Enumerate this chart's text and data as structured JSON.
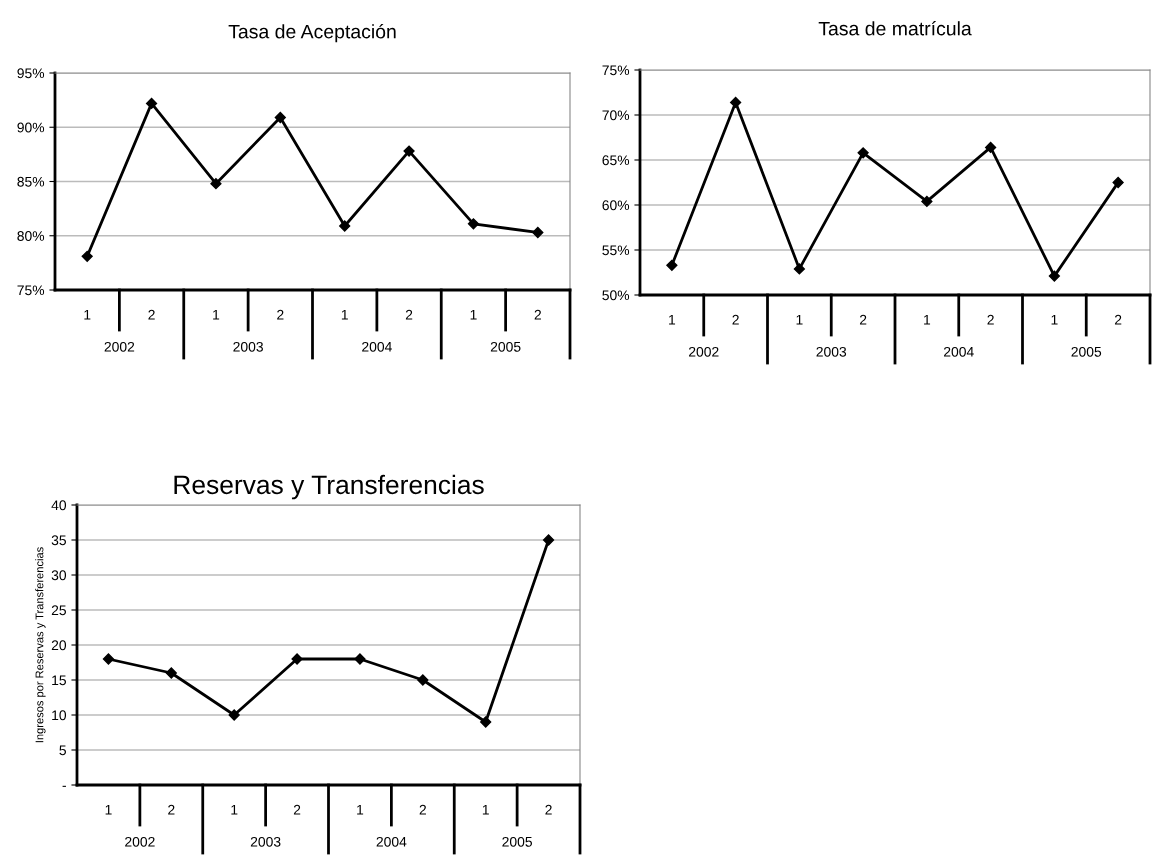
{
  "chart_data": [
    {
      "type": "line",
      "title": "Tasa de Aceptación",
      "categories": [
        "1",
        "2",
        "1",
        "2",
        "1",
        "2",
        "1",
        "2"
      ],
      "series": [
        {
          "color": "#000000",
          "values": [
            78.1,
            92.2,
            84.8,
            90.9,
            80.9,
            87.8,
            81.1,
            80.3
          ]
        }
      ],
      "annotations": [
        "2002",
        "2003",
        "2004",
        "2005"
      ],
      "ylim": [
        75,
        95
      ],
      "yticks": [
        {
          "value": 75,
          "label": "75%"
        },
        {
          "value": 80,
          "label": "80%"
        },
        {
          "value": 85,
          "label": "85%"
        },
        {
          "value": 90,
          "label": "90%"
        },
        {
          "value": 95,
          "label": "95%"
        }
      ],
      "grid": "y",
      "marker": "diamond",
      "line_style": "solid",
      "legend": false
    },
    {
      "type": "line",
      "title": "Tasa de matrícula",
      "categories": [
        "1",
        "2",
        "1",
        "2",
        "1",
        "2",
        "1",
        "2"
      ],
      "series": [
        {
          "color": "#000000",
          "values": [
            53.3,
            71.4,
            52.9,
            65.8,
            60.4,
            66.4,
            52.1,
            62.5
          ]
        }
      ],
      "annotations": [
        "2002",
        "2003",
        "2004",
        "2005"
      ],
      "ylim": [
        50,
        75
      ],
      "yticks": [
        {
          "value": 50,
          "label": "50%"
        },
        {
          "value": 55,
          "label": "55%"
        },
        {
          "value": 60,
          "label": "60%"
        },
        {
          "value": 65,
          "label": "65%"
        },
        {
          "value": 70,
          "label": "70%"
        },
        {
          "value": 75,
          "label": "75%"
        }
      ],
      "grid": "y",
      "marker": "diamond",
      "line_style": "solid",
      "legend": false
    },
    {
      "type": "line",
      "title": "Reservas y Transferencias",
      "ylabel": "Ingresos por Reservas y Transferencias",
      "categories": [
        "1",
        "2",
        "1",
        "2",
        "1",
        "2",
        "1",
        "2"
      ],
      "series": [
        {
          "color": "#000000",
          "values": [
            18,
            16,
            10,
            18,
            18,
            15,
            9,
            35
          ]
        }
      ],
      "annotations": [
        "2002",
        "2003",
        "2004",
        "2005"
      ],
      "ylim": [
        0,
        40
      ],
      "yticks": [
        {
          "value": 0,
          "label": "-"
        },
        5,
        10,
        15,
        20,
        25,
        30,
        35,
        40
      ],
      "grid": "y",
      "marker": "diamond",
      "line_style": "solid",
      "legend": false
    }
  ]
}
